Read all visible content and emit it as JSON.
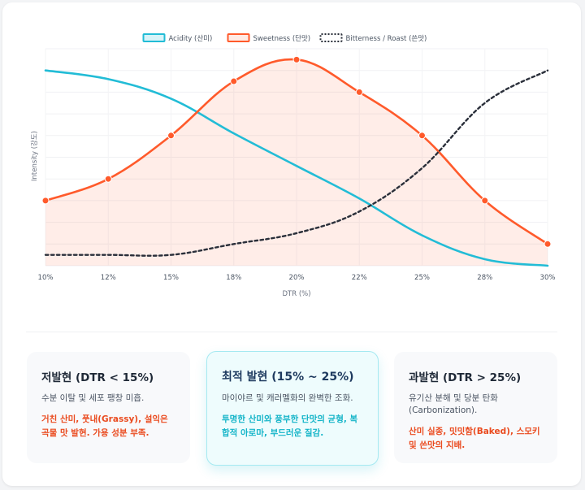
{
  "chart_data": {
    "type": "line",
    "x": [
      "10%",
      "12%",
      "15%",
      "18%",
      "20%",
      "22%",
      "25%",
      "28%",
      "30%"
    ],
    "xlabel": "DTR (%)",
    "ylabel": "Intensity (강도)",
    "ylim": [
      0,
      100
    ],
    "grid": true,
    "legend": "top",
    "series": [
      {
        "name": "Acidity (산미)",
        "values": [
          90,
          86,
          77,
          61,
          46,
          31,
          14,
          3,
          0
        ],
        "color": "#22bcd6",
        "style": "solid",
        "fill": false
      },
      {
        "name": "Sweetness (단맛)",
        "values": [
          30,
          40,
          60,
          85,
          95,
          80,
          60,
          30,
          10
        ],
        "color": "#ff5a2b",
        "style": "solid",
        "fill": true,
        "markers": true
      },
      {
        "name": "Bitterness / Roast (쓴맛)",
        "values": [
          5,
          5,
          5,
          10,
          15,
          25,
          45,
          75,
          90
        ],
        "color": "#2a2f3a",
        "style": "dotted",
        "fill": false
      }
    ]
  },
  "panels": [
    {
      "title": "저발현 (DTR < 15%)",
      "desc": "수분 이탈 및 세포 팽창 미흡.",
      "note": "거친 산미, 풋내(Grassy), 설익은 곡물 맛 발현. 가용 성분 부족."
    },
    {
      "title": "최적 발현 (15% ~ 25%)",
      "desc": "마이야르 및 캐러멜화의 완벽한 조화.",
      "note": "투명한 산미와 풍부한 단맛의 균형, 복합적 아로마, 부드러운 질감."
    },
    {
      "title": "과발현 (DTR > 25%)",
      "desc": "유기산 분해 및 당분 탄화 (Carbonization).",
      "note": "산미 실종, 밋밋함(Baked), 스모키 및 쓴맛의 지배."
    }
  ]
}
